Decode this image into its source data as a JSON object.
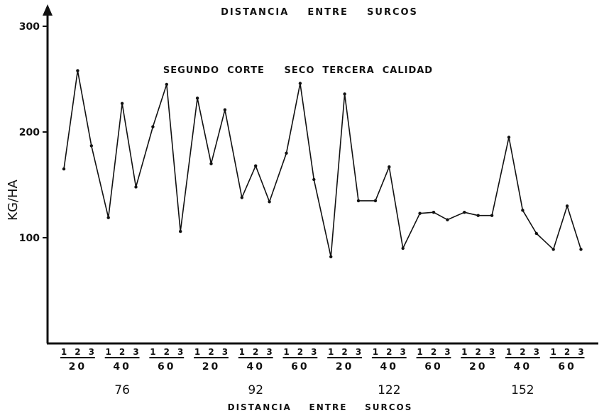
{
  "chart_data": {
    "type": "line",
    "title": "DISTANCIA    ENTRE    SURCOS",
    "annotation": "SEGUNDO  CORTE     SECO  TERCERA  CALIDAD",
    "ylabel": "KG/HA",
    "xlabel": "DISTANCIA    ENTRE    SURCOS",
    "ylim": [
      0,
      300
    ],
    "yticks": [
      100,
      200,
      300
    ],
    "ytick_labels": [
      "100",
      "200",
      "300"
    ],
    "line_color": "#111111",
    "groups": [
      {
        "label": "76",
        "subgroups": [
          {
            "label": "20",
            "points": [
              "1",
              "2",
              "3"
            ],
            "values": [
              165,
              258,
              187
            ]
          },
          {
            "label": "40",
            "points": [
              "1",
              "2",
              "3"
            ],
            "values": [
              119,
              227,
              148
            ]
          },
          {
            "label": "60",
            "points": [
              "1",
              "2",
              "3"
            ],
            "values": [
              205,
              245,
              106
            ]
          }
        ]
      },
      {
        "label": "92",
        "subgroups": [
          {
            "label": "20",
            "points": [
              "1",
              "2",
              "3"
            ],
            "values": [
              232,
              170,
              221
            ]
          },
          {
            "label": "40",
            "points": [
              "1",
              "2",
              "3"
            ],
            "values": [
              138,
              168,
              134
            ]
          },
          {
            "label": "60",
            "points": [
              "1",
              "2",
              "3"
            ],
            "values": [
              180,
              246,
              155
            ]
          }
        ]
      },
      {
        "label": "122",
        "subgroups": [
          {
            "label": "20",
            "points": [
              "1",
              "2",
              "3"
            ],
            "values": [
              82,
              236,
              135
            ]
          },
          {
            "label": "40",
            "points": [
              "1",
              "2",
              "3"
            ],
            "values": [
              135,
              167,
              90
            ]
          },
          {
            "label": "60",
            "points": [
              "1",
              "2",
              "3"
            ],
            "values": [
              123,
              124,
              117
            ]
          }
        ]
      },
      {
        "label": "152",
        "subgroups": [
          {
            "label": "20",
            "points": [
              "1",
              "2",
              "3"
            ],
            "values": [
              124,
              121,
              121
            ]
          },
          {
            "label": "40",
            "points": [
              "1",
              "2",
              "3"
            ],
            "values": [
              195,
              126,
              104
            ]
          },
          {
            "label": "60",
            "points": [
              "1",
              "2",
              "3"
            ],
            "values": [
              89,
              130,
              89
            ]
          }
        ]
      }
    ]
  }
}
